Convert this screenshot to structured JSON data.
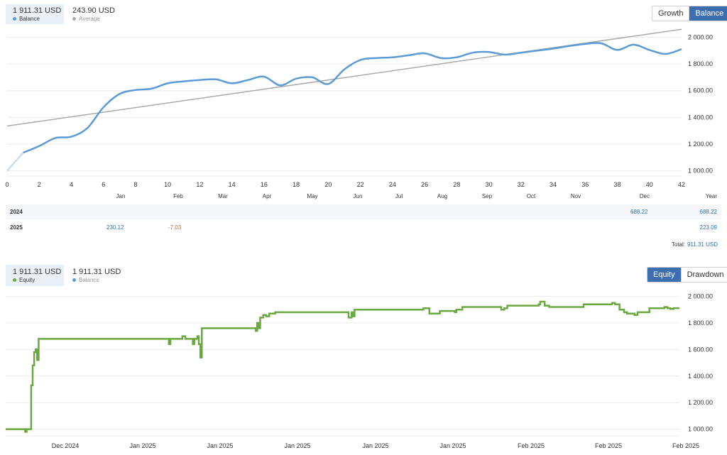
{
  "top": {
    "legend": [
      {
        "value": "1 911.31 USD",
        "label": "Balance",
        "color": "#5b9bd5",
        "active": true
      },
      {
        "value": "243.90 USD",
        "label": "Average",
        "color": "#aaaaaa",
        "active": false
      }
    ],
    "buttons": [
      {
        "label": "Growth",
        "active": false
      },
      {
        "label": "Balance",
        "active": true
      }
    ]
  },
  "returns_table": {
    "month_headers": [
      "Jan",
      "Feb",
      "Mar",
      "Apr",
      "May",
      "Jun",
      "Jul",
      "Aug",
      "Sep",
      "Oct",
      "Nov",
      "Dec"
    ],
    "year_header": "Year",
    "rows": [
      {
        "year": "2024",
        "months": [
          "",
          "",
          "",
          "",
          "",
          "",
          "",
          "",
          "",
          "",
          "",
          "688.22"
        ],
        "total": "688.22"
      },
      {
        "year": "2025",
        "months": [
          "230.12",
          "-7.03",
          "",
          "",
          "",
          "",
          "",
          "",
          "",
          "",
          "",
          ""
        ],
        "total": "223.09"
      }
    ],
    "total_label": "Total:",
    "total_value": "911.31 USD"
  },
  "bottom": {
    "legend": [
      {
        "value": "1 911.31 USD",
        "label": "Equity",
        "color": "#6aa840",
        "active": true
      },
      {
        "value": "1 911.31 USD",
        "label": "Balance",
        "color": "#5b9bd5",
        "active": false
      }
    ],
    "buttons": [
      {
        "label": "Equity",
        "active": true
      },
      {
        "label": "Drawdown",
        "active": false
      }
    ]
  },
  "chart_data": [
    {
      "type": "line",
      "x_tick_labels": [
        "0",
        "2",
        "4",
        "6",
        "8",
        "10",
        "12",
        "14",
        "16",
        "18",
        "20",
        "22",
        "24",
        "26",
        "28",
        "30",
        "32",
        "34",
        "36",
        "38",
        "40",
        "42"
      ],
      "y_tick_labels": [
        "1 000.00",
        "1 200.00",
        "1 400.00",
        "1 600.00",
        "1 800.00",
        "2 000.00"
      ],
      "xlim": [
        0,
        42
      ],
      "ylim": [
        960,
        2120
      ],
      "grid": true,
      "series": [
        {
          "name": "Balance",
          "color": "#5b9bd5",
          "x": [
            0,
            1,
            2,
            3,
            4,
            5,
            6,
            7,
            8,
            9,
            10,
            11,
            12,
            13,
            14,
            15,
            16,
            17,
            18,
            19,
            20,
            21,
            22,
            23,
            24,
            25,
            26,
            27,
            28,
            29,
            30,
            31,
            32,
            33,
            34,
            35,
            36,
            37,
            38,
            39,
            40,
            41,
            42
          ],
          "y": [
            1000,
            1135,
            1185,
            1245,
            1255,
            1320,
            1475,
            1575,
            1605,
            1615,
            1655,
            1670,
            1680,
            1685,
            1655,
            1680,
            1705,
            1640,
            1690,
            1700,
            1650,
            1760,
            1830,
            1845,
            1850,
            1865,
            1880,
            1845,
            1850,
            1885,
            1890,
            1870,
            1885,
            1900,
            1915,
            1935,
            1950,
            1955,
            1905,
            1945,
            1905,
            1875,
            1911.31
          ]
        },
        {
          "name": "Average",
          "color": "#aaaaaa",
          "x": [
            0,
            42
          ],
          "y": [
            1335,
            2060
          ]
        }
      ]
    },
    {
      "type": "line",
      "x_tick_labels": [
        "Dec 2024",
        "Jan 2025",
        "Jan 2025",
        "Jan 2025",
        "Jan 2025",
        "Jan 2025",
        "Feb 2025",
        "Feb 2025",
        "Feb 2025"
      ],
      "y_tick_labels": [
        "1 000.00",
        "1 200.00",
        "1 400.00",
        "1 600.00",
        "1 800.00",
        "2 000.00"
      ],
      "ylim": [
        950,
        2040
      ],
      "grid": true,
      "series": [
        {
          "name": "Equity",
          "color": "#6aa840",
          "x": [
            0,
            1.2,
            1.3,
            1.4,
            1.5,
            1.7,
            1.8,
            1.9,
            2.0,
            2.1,
            2.2,
            2.25,
            2.3,
            2.4,
            2.6,
            10.8,
            10.9,
            11.0,
            11.2,
            11.4,
            11.6,
            11.8,
            12.0,
            12.5,
            12.6,
            12.8,
            12.9,
            13.0,
            13.1,
            13.2,
            16.6,
            16.7,
            16.8,
            16.9,
            17.0,
            17.2,
            17.4,
            17.6,
            18.0,
            18.2,
            18.6,
            22.8,
            22.9,
            23.1,
            23.2,
            23.3,
            27.8,
            27.9,
            28.3,
            28.6,
            29.0,
            30.0,
            30.1,
            30.5,
            31.0,
            33.0,
            33.1,
            33.3,
            33.5,
            35.6,
            35.7,
            36.0,
            36.3,
            37.0,
            37.1,
            38.5,
            38.6,
            40.5,
            40.7,
            41.0,
            41.3,
            41.5,
            42.0,
            42.2,
            43.0,
            44.0,
            44.2,
            44.4,
            44.6,
            45.0
          ],
          "y": [
            1000,
            1000,
            980,
            1000,
            1000,
            1330,
            1480,
            1580,
            1600,
            1520,
            1680,
            1680,
            1680,
            1680,
            1680,
            1680,
            1640,
            1680,
            1680,
            1680,
            1680,
            1700,
            1680,
            1640,
            1680,
            1700,
            1640,
            1540,
            1760,
            1760,
            1760,
            1740,
            1800,
            1760,
            1840,
            1860,
            1850,
            1870,
            1880,
            1880,
            1880,
            1880,
            1840,
            1880,
            1850,
            1900,
            1900,
            1910,
            1870,
            1870,
            1890,
            1880,
            1900,
            1920,
            1920,
            1920,
            1900,
            1910,
            1930,
            1940,
            1960,
            1930,
            1920,
            1920,
            1920,
            1920,
            1940,
            1950,
            1940,
            1900,
            1880,
            1870,
            1860,
            1880,
            1910,
            1920,
            1910,
            1905,
            1911.31,
            1911.31
          ]
        }
      ]
    }
  ]
}
